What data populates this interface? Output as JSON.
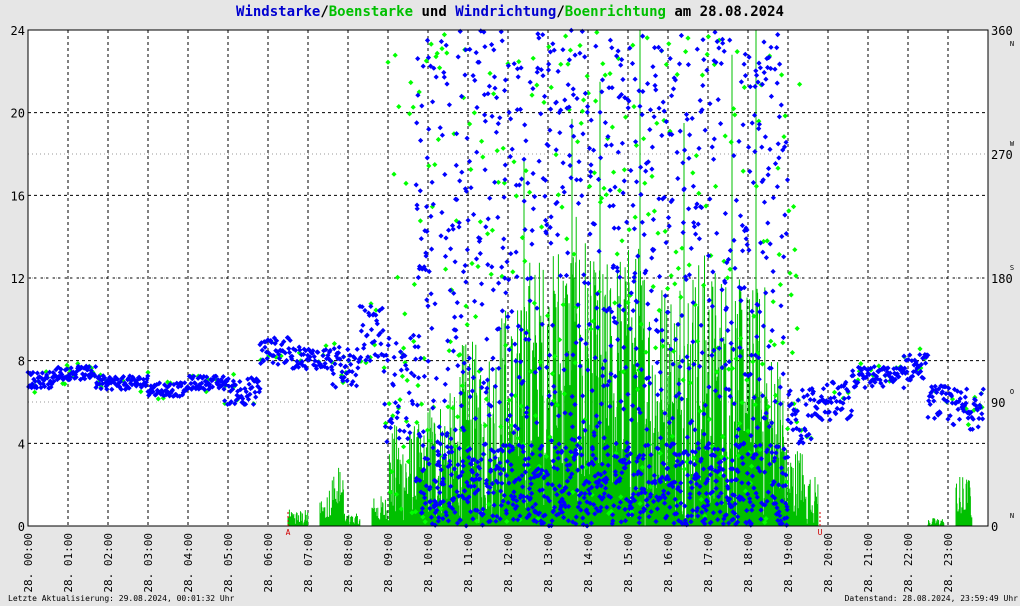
{
  "title": {
    "part1": "Windstarke",
    "sep1": "/",
    "part2": "Boenstarke",
    "mid": " und ",
    "part3": "Windrichtung",
    "sep2": "/",
    "part4": "Boenrichtung",
    "end": " am 28.08.2024"
  },
  "footer": {
    "left": "Letzte Aktualisierung: 29.08.2024, 00:01:32 Uhr",
    "right": "Datenstand: 28.08.2024, 23:59:49 Uhr"
  },
  "colors": {
    "speed": "#00c000",
    "direction": "#0000ff",
    "direction_gust": "#00ff00",
    "marker": "#d00000",
    "grid": "#000000",
    "background": "#e6e6e6"
  },
  "chart_data": {
    "type": "line",
    "x_range_hours": [
      0,
      24
    ],
    "x_tick_labels": [
      "28. 00:00",
      "28. 01:00",
      "28. 02:00",
      "28. 03:00",
      "28. 04:00",
      "28. 05:00",
      "28. 06:00",
      "28. 07:00",
      "28. 08:00",
      "28. 09:00",
      "28. 10:00",
      "28. 11:00",
      "28. 12:00",
      "28. 13:00",
      "28. 14:00",
      "28. 15:00",
      "28. 16:00",
      "28. 17:00",
      "28. 18:00",
      "28. 19:00",
      "28. 20:00",
      "28. 21:00",
      "28. 22:00",
      "28. 23:00"
    ],
    "y_left": {
      "range": [
        0,
        24
      ],
      "ticks": [
        0,
        4,
        8,
        12,
        16,
        20,
        24
      ]
    },
    "y_right": {
      "range": [
        0,
        360
      ],
      "ticks": [
        0,
        90,
        180,
        270,
        360
      ],
      "compass": [
        "N",
        "O",
        "S",
        "W",
        "N"
      ]
    },
    "markers": [
      {
        "label": "A",
        "hour": 6.5
      },
      {
        "label": "U",
        "hour": 19.8
      }
    ],
    "grid": true,
    "series": [
      {
        "name": "Windstarke",
        "style": "spikes",
        "segments": [
          [
            6.5,
            7.0,
            0.8
          ],
          [
            7.3,
            7.5,
            1.5
          ],
          [
            7.5,
            7.9,
            3.0
          ],
          [
            7.9,
            8.3,
            0.6
          ],
          [
            8.6,
            9.0,
            1.5
          ],
          [
            9.0,
            10.0,
            5.0
          ],
          [
            10.0,
            10.8,
            6.5
          ],
          [
            10.8,
            11.7,
            9.0
          ],
          [
            11.7,
            12.4,
            11.0
          ],
          [
            12.4,
            13.2,
            13.5
          ],
          [
            13.2,
            14.0,
            15.0
          ],
          [
            14.0,
            14.7,
            13.0
          ],
          [
            14.7,
            15.5,
            14.0
          ],
          [
            15.5,
            16.3,
            12.5
          ],
          [
            16.3,
            17.0,
            13.5
          ],
          [
            17.0,
            17.7,
            13.0
          ],
          [
            17.7,
            18.5,
            12.0
          ],
          [
            18.5,
            18.9,
            9.0
          ],
          [
            18.9,
            19.4,
            4.0
          ],
          [
            19.4,
            19.75,
            2.5
          ],
          [
            22.5,
            22.9,
            0.4
          ],
          [
            23.2,
            23.6,
            2.5
          ]
        ],
        "peaks": [
          [
            12.4,
            17.8
          ],
          [
            13.6,
            19.7
          ],
          [
            14.3,
            21.5
          ],
          [
            15.3,
            24
          ],
          [
            16.4,
            19.5
          ],
          [
            17.6,
            22.8
          ],
          [
            18.2,
            24
          ]
        ]
      },
      {
        "name": "Windrichtung",
        "unit": "deg",
        "style": "diamonds",
        "segments": [
          [
            0.0,
            0.7,
            106,
            6
          ],
          [
            0.7,
            1.7,
            111,
            5
          ],
          [
            1.7,
            3.0,
            104,
            5
          ],
          [
            3.0,
            4.0,
            99,
            5
          ],
          [
            4.0,
            4.9,
            104,
            5
          ],
          [
            4.9,
            5.8,
            98,
            10
          ],
          [
            5.8,
            6.6,
            127,
            10
          ],
          [
            6.6,
            7.6,
            122,
            8
          ],
          [
            7.6,
            8.3,
            115,
            15
          ],
          [
            8.3,
            8.9,
            140,
            20
          ],
          [
            8.9,
            9.7,
            100,
            40
          ],
          [
            19.0,
            19.6,
            80,
            20
          ],
          [
            19.6,
            20.6,
            90,
            15
          ],
          [
            20.6,
            21.9,
            108,
            8
          ],
          [
            21.9,
            22.5,
            115,
            10
          ],
          [
            22.5,
            23.0,
            90,
            12
          ],
          [
            23.0,
            23.9,
            85,
            15
          ]
        ],
        "scatter_hours": [
          9.7,
          19.0
        ]
      },
      {
        "name": "Boenrichtung",
        "unit": "deg",
        "style": "diamonds",
        "scatter_hours": [
          9.0,
          19.3
        ]
      }
    ]
  }
}
